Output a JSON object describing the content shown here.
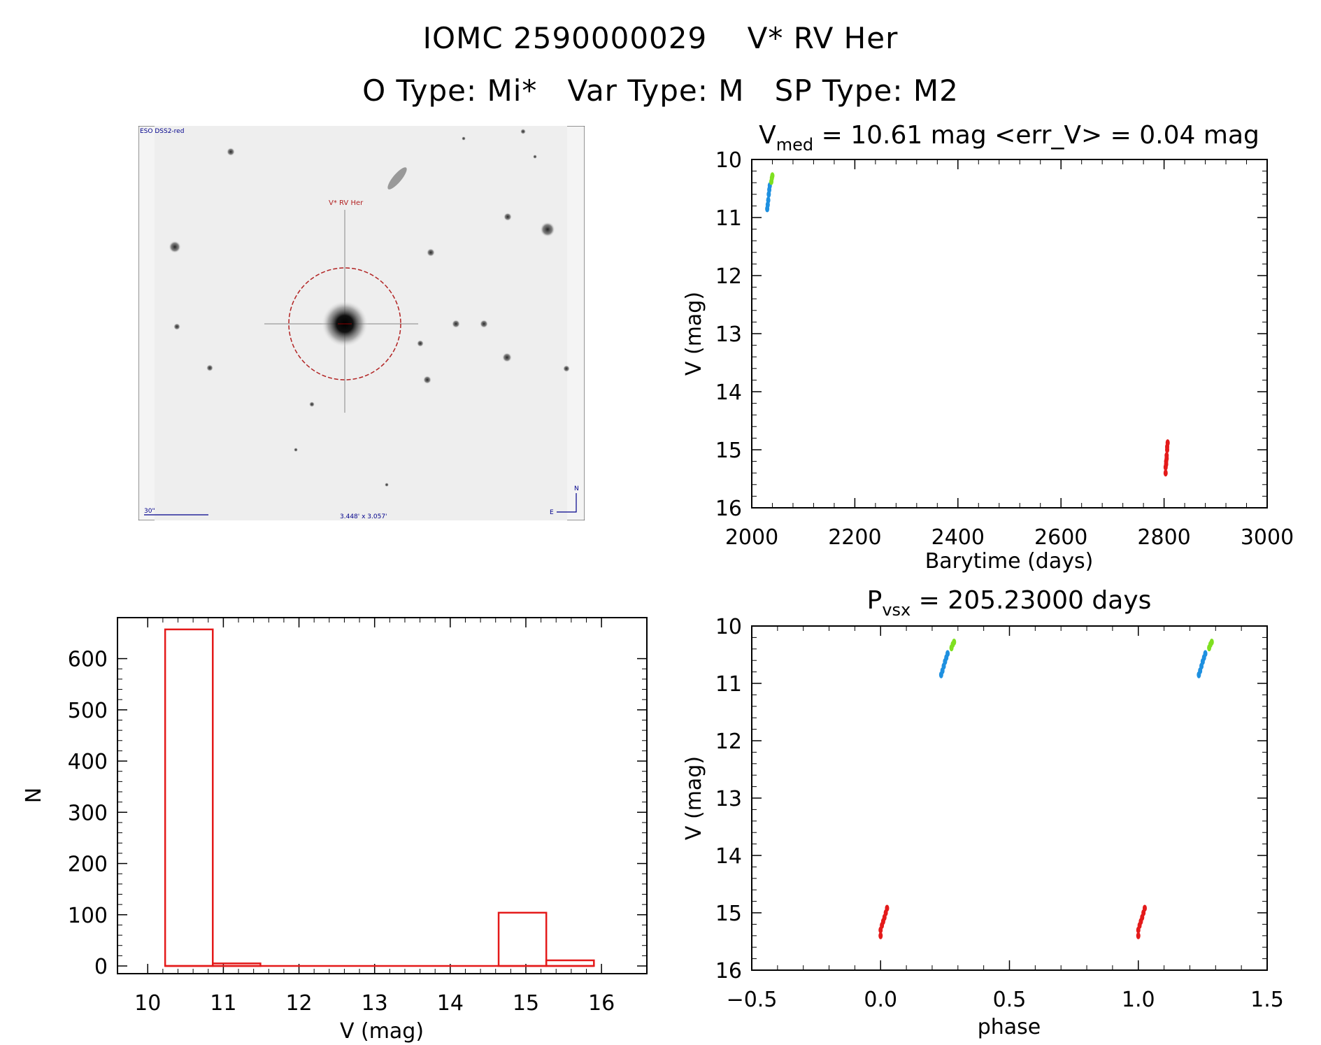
{
  "header": {
    "title_line1": "IOMC 2590000029    V* RV Her",
    "title_line2": "O Type: Mi*   Var Type: M   SP Type: M2"
  },
  "finder_image": {
    "survey_label": "ESO DSS2-red",
    "target_label": "V* RV Her",
    "scale_label": "30\"",
    "fov_label": "3.448' x 3.057'",
    "north_label": "N",
    "east_label": "E"
  },
  "chart_data": [
    {
      "id": "light_curve",
      "type": "scatter",
      "title": "V",
      "title_sub": "med",
      "title_rest": " = 10.61 mag <err_V> = 0.04 mag",
      "xlabel": "Barytime (days)",
      "ylabel": "V (mag)",
      "xlim": [
        2000,
        3000
      ],
      "ylim": [
        16,
        10
      ],
      "xticks": [
        "2000",
        "2200",
        "2400",
        "2600",
        "2800",
        "3000"
      ],
      "yticks": [
        "10",
        "11",
        "12",
        "13",
        "14",
        "15",
        "16"
      ],
      "series": [
        {
          "color": "#1e90e0",
          "points": [
            [
              2030,
              10.85
            ],
            [
              2031,
              10.78
            ],
            [
              2032,
              10.7
            ],
            [
              2033,
              10.6
            ],
            [
              2034,
              10.52
            ],
            [
              2035,
              10.45
            ]
          ]
        },
        {
          "color": "#7fe020",
          "points": [
            [
              2038,
              10.38
            ],
            [
              2039,
              10.32
            ],
            [
              2040,
              10.28
            ]
          ]
        },
        {
          "color": "#e41a1a",
          "points": [
            [
              2803,
              15.4
            ],
            [
              2803,
              15.3
            ],
            [
              2804,
              15.25
            ],
            [
              2804,
              15.2
            ],
            [
              2805,
              15.15
            ],
            [
              2805,
              15.1
            ],
            [
              2806,
              15.0
            ],
            [
              2806,
              14.95
            ],
            [
              2807,
              14.88
            ]
          ]
        }
      ]
    },
    {
      "id": "phased_curve",
      "type": "scatter",
      "title": "P",
      "title_sub": "vsx",
      "title_rest": " = 205.23000 days",
      "xlabel": "phase",
      "ylabel": "V (mag)",
      "xlim": [
        -0.5,
        1.5
      ],
      "ylim": [
        16,
        10
      ],
      "xticks": [
        "−0.5",
        "0.0",
        "0.5",
        "1.0",
        "1.5"
      ],
      "yticks": [
        "10",
        "11",
        "12",
        "13",
        "14",
        "15",
        "16"
      ],
      "series": [
        {
          "color": "#1e90e0",
          "points": [
            [
              0.235,
              10.85
            ],
            [
              0.24,
              10.78
            ],
            [
              0.245,
              10.7
            ],
            [
              0.25,
              10.62
            ],
            [
              0.255,
              10.55
            ],
            [
              0.26,
              10.48
            ],
            [
              1.235,
              10.85
            ],
            [
              1.24,
              10.78
            ],
            [
              1.245,
              10.7
            ],
            [
              1.25,
              10.62
            ],
            [
              1.255,
              10.55
            ],
            [
              1.26,
              10.48
            ]
          ]
        },
        {
          "color": "#7fe020",
          "points": [
            [
              0.275,
              10.38
            ],
            [
              0.28,
              10.32
            ],
            [
              0.285,
              10.28
            ],
            [
              1.275,
              10.38
            ],
            [
              1.28,
              10.32
            ],
            [
              1.285,
              10.28
            ]
          ]
        },
        {
          "color": "#e41a1a",
          "points": [
            [
              0.0,
              15.4
            ],
            [
              0.0,
              15.3
            ],
            [
              0.005,
              15.22
            ],
            [
              0.01,
              15.15
            ],
            [
              0.015,
              15.08
            ],
            [
              0.02,
              15.0
            ],
            [
              0.025,
              14.92
            ],
            [
              1.0,
              15.4
            ],
            [
              1.0,
              15.3
            ],
            [
              1.005,
              15.22
            ],
            [
              1.01,
              15.15
            ],
            [
              1.015,
              15.08
            ],
            [
              1.02,
              15.0
            ],
            [
              1.025,
              14.92
            ]
          ]
        }
      ]
    },
    {
      "id": "histogram",
      "type": "bar",
      "xlabel": "V (mag)",
      "ylabel": "N",
      "xlim": [
        9.6,
        16.6
      ],
      "ylim": [
        -15,
        680
      ],
      "xticks": [
        "10",
        "11",
        "12",
        "13",
        "14",
        "15",
        "16"
      ],
      "yticks": [
        "0",
        "100",
        "200",
        "300",
        "400",
        "500",
        "600"
      ],
      "bin_edges": [
        10.23,
        10.86,
        11.49,
        12.12,
        12.75,
        13.38,
        14.01,
        14.64,
        15.27,
        15.9
      ],
      "values": [
        657,
        5,
        0,
        0,
        0,
        0,
        0,
        104,
        11
      ],
      "color": "#e41a1a"
    }
  ]
}
